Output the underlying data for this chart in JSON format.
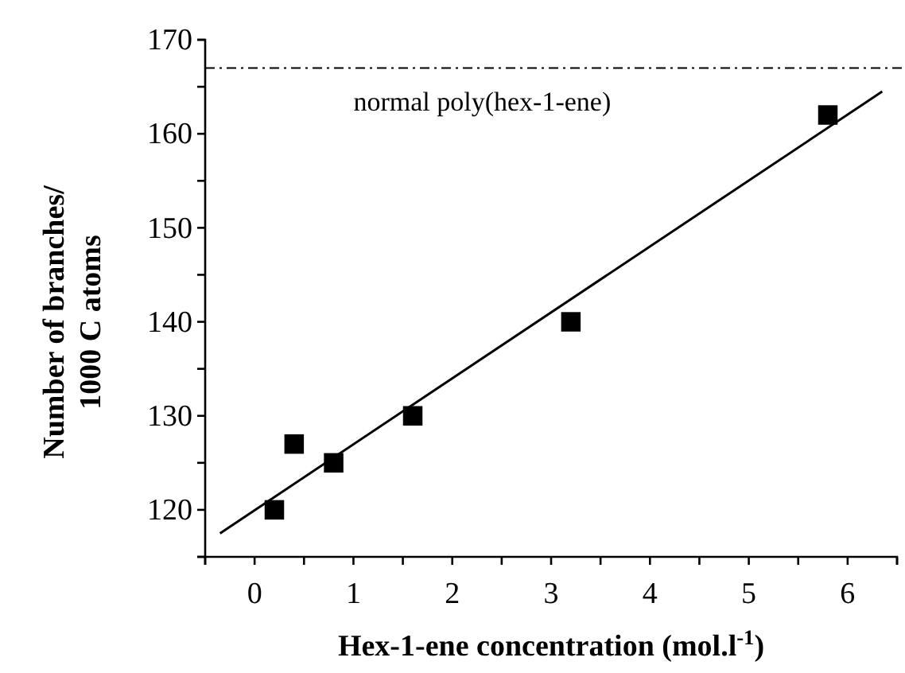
{
  "chart_data": {
    "type": "scatter",
    "xlabel": "Hex-1-ene concentration (mol.l$^{-1}$)",
    "ylabel": "Number of branches/\n1000 C atoms",
    "x": [
      0.2,
      0.4,
      0.8,
      1.6,
      3.2,
      5.8
    ],
    "series": [
      {
        "color": "#000000",
        "marker": "square",
        "values": [
          120,
          127,
          125,
          130,
          140,
          162
        ]
      },
      {
        "type": "line",
        "color": "#000000",
        "marker": "none",
        "line_style": "solid",
        "x": [
          -0.35,
          6.35
        ],
        "values": [
          117.5,
          164.5
        ]
      }
    ],
    "xlim": [
      -0.5,
      6.5
    ],
    "ylim": [
      115,
      170
    ],
    "xticks": [
      {
        "value": -0.5,
        "label": null
      },
      0,
      {
        "value": 0.5,
        "label": null
      },
      1,
      {
        "value": 1.5,
        "label": null
      },
      2,
      {
        "value": 2.5,
        "label": null
      },
      3,
      {
        "value": 3.5,
        "label": null
      },
      4,
      {
        "value": 4.5,
        "label": null
      },
      5,
      {
        "value": 5.5,
        "label": null
      },
      6,
      {
        "value": 6.5,
        "label": null
      }
    ],
    "yticks": [
      {
        "value": 115,
        "label": null
      },
      120,
      {
        "value": 125,
        "label": null
      },
      130,
      {
        "value": 135,
        "label": null
      },
      140,
      {
        "value": 145,
        "label": null
      },
      150,
      {
        "value": 155,
        "label": null
      },
      160,
      {
        "value": 165,
        "label": null
      },
      170
    ],
    "ref_lines": [
      {
        "axis": "y",
        "value": 167,
        "label": "normal poly(hex-1-ene)",
        "line_style": "dashdot",
        "color": "#000000"
      }
    ],
    "grid": false
  }
}
